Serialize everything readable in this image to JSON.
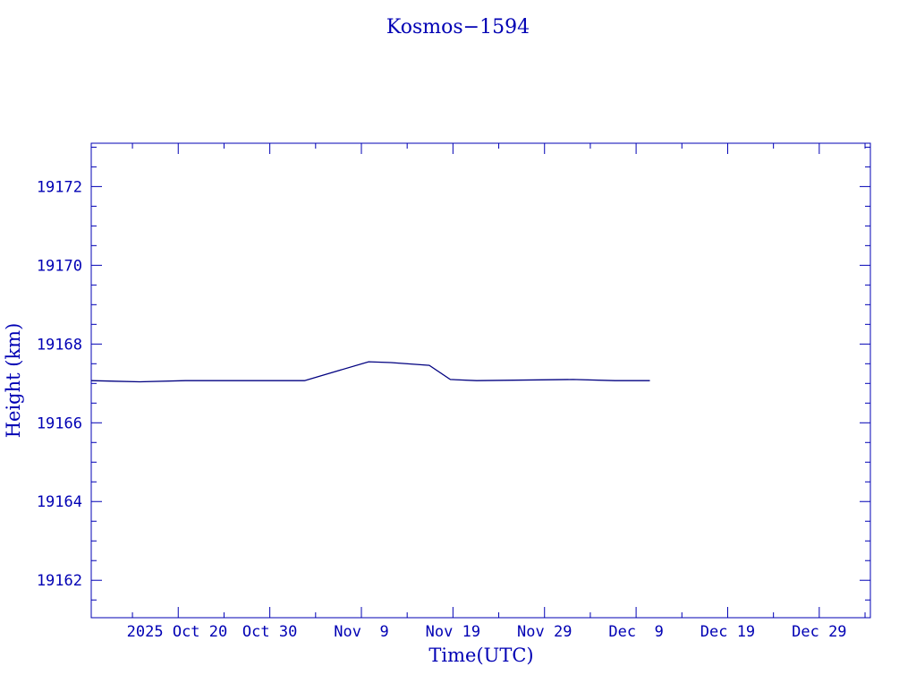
{
  "chart_data": {
    "type": "line",
    "title": "Kosmos−1594",
    "xlabel": "Time(UTC)",
    "ylabel": "Height (km)",
    "color": "#000080",
    "axis_color": "#0000b4",
    "xlim": [
      "2025-10-10T12:00",
      "2026-01-03T14:00"
    ],
    "ylim": [
      19161.05,
      19173.1
    ],
    "x_ticks": [
      {
        "date": "2025-10-20",
        "label": "2025 Oct 20"
      },
      {
        "date": "2025-10-30",
        "label": "Oct 30"
      },
      {
        "date": "2025-11-09",
        "label": "Nov  9"
      },
      {
        "date": "2025-11-19",
        "label": "Nov 19"
      },
      {
        "date": "2025-11-29",
        "label": "Nov 29"
      },
      {
        "date": "2025-12-09",
        "label": "Dec  9"
      },
      {
        "date": "2025-12-19",
        "label": "Dec 19"
      },
      {
        "date": "2025-12-29",
        "label": "Dec 29"
      }
    ],
    "y_ticks": [
      19162,
      19164,
      19166,
      19168,
      19170,
      19172
    ],
    "grid": false,
    "series": [
      {
        "points": [
          [
            "2025-10-10T12:00",
            19167.07
          ],
          [
            "2025-10-15T19:00",
            19167.04
          ],
          [
            "2025-10-20T19:00",
            19167.07
          ],
          [
            "2025-11-02T19:00",
            19167.07
          ],
          [
            "2025-11-09T19:00",
            19167.55
          ],
          [
            "2025-11-12T05:00",
            19167.53
          ],
          [
            "2025-11-16T10:00",
            19167.46
          ],
          [
            "2025-11-18T17:00",
            19167.1
          ],
          [
            "2025-11-21T14:00",
            19167.07
          ],
          [
            "2025-12-02T02:00",
            19167.1
          ],
          [
            "2025-12-06T17:00",
            19167.07
          ],
          [
            "2025-12-10T12:00",
            19167.07
          ]
        ]
      }
    ]
  }
}
